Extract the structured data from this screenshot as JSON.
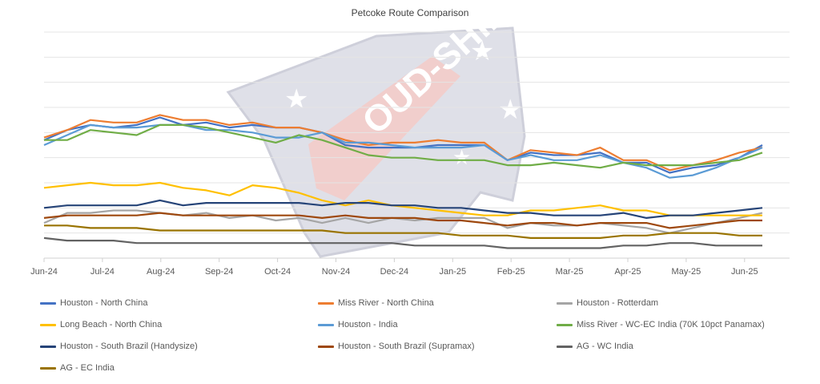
{
  "chart_data": {
    "type": "line",
    "title": "Petcoke Route Comparison",
    "xlabel": "",
    "ylabel": "",
    "ylim": [
      0,
      90
    ],
    "grid": true,
    "legend_position": "bottom",
    "watermark": "OUD-SHIP",
    "x_tick_labels": [
      "Jun-24",
      "Jul-24",
      "Aug-24",
      "Sep-24",
      "Oct-24",
      "Nov-24",
      "Dec-24",
      "Jan-25",
      "Feb-25",
      "Mar-25",
      "Apr-25",
      "May-25",
      "Jun-25"
    ],
    "series": [
      {
        "name": "Houston - North China",
        "color": "#4472C4",
        "values": [
          47,
          51,
          53,
          52,
          53,
          56,
          53,
          54,
          52,
          53,
          52,
          52,
          50,
          45,
          44,
          44,
          44,
          45,
          45,
          45,
          39,
          42,
          41,
          41,
          42,
          38,
          38,
          34,
          36,
          37,
          40,
          45
        ]
      },
      {
        "name": "Miss River - North China",
        "color": "#ED7D31",
        "values": [
          48,
          51,
          55,
          54,
          54,
          57,
          55,
          55,
          53,
          54,
          52,
          52,
          50,
          47,
          45,
          46,
          46,
          47,
          46,
          46,
          39,
          43,
          42,
          41,
          44,
          39,
          39,
          35,
          37,
          39,
          42,
          44
        ]
      },
      {
        "name": "Houston - Rotterdam",
        "color": "#A5A5A5",
        "values": [
          14,
          18,
          18,
          19,
          19,
          18,
          17,
          18,
          16,
          17,
          15,
          16,
          14,
          16,
          14,
          16,
          15,
          16,
          16,
          16,
          12,
          14,
          13,
          13,
          14,
          13,
          12,
          10,
          12,
          14,
          16,
          18
        ]
      },
      {
        "name": "Long Beach - North China",
        "color": "#FFC000",
        "values": [
          28,
          29,
          30,
          29,
          29,
          30,
          28,
          27,
          25,
          29,
          28,
          26,
          23,
          21,
          23,
          21,
          20,
          19,
          18,
          17,
          17,
          19,
          19,
          20,
          21,
          19,
          19,
          17,
          17,
          17,
          17,
          17
        ]
      },
      {
        "name": "Houston - India",
        "color": "#5B9BD5",
        "values": [
          45,
          49,
          53,
          52,
          52,
          53,
          53,
          51,
          51,
          50,
          48,
          48,
          50,
          46,
          46,
          45,
          44,
          44,
          44,
          45,
          39,
          41,
          39,
          39,
          41,
          38,
          36,
          32,
          33,
          36,
          40,
          44
        ]
      },
      {
        "name": "Miss River - WC-EC India (70K 10pct Panamax)",
        "color": "#70AD47",
        "values": [
          47,
          47,
          51,
          50,
          49,
          53,
          53,
          52,
          50,
          48,
          46,
          49,
          47,
          44,
          41,
          40,
          40,
          39,
          39,
          39,
          37,
          37,
          38,
          37,
          36,
          38,
          37,
          37,
          37,
          38,
          39,
          42
        ]
      },
      {
        "name": "Houston - South Brazil (Handysize)",
        "color": "#264478",
        "values": [
          20,
          21,
          21,
          21,
          21,
          23,
          21,
          22,
          22,
          22,
          22,
          22,
          21,
          22,
          22,
          21,
          21,
          20,
          20,
          19,
          18,
          18,
          17,
          17,
          17,
          18,
          16,
          17,
          17,
          18,
          19,
          20
        ]
      },
      {
        "name": "Houston - South Brazil (Supramax)",
        "color": "#9E480E",
        "values": [
          16,
          17,
          17,
          17,
          17,
          18,
          17,
          17,
          17,
          17,
          17,
          17,
          16,
          17,
          16,
          16,
          16,
          15,
          15,
          14,
          13,
          14,
          14,
          13,
          14,
          14,
          14,
          12,
          13,
          14,
          15,
          15
        ]
      },
      {
        "name": "AG - WC India",
        "color": "#636363",
        "values": [
          8,
          7,
          7,
          7,
          6,
          6,
          6,
          6,
          6,
          6,
          6,
          6,
          6,
          6,
          6,
          6,
          5,
          5,
          5,
          5,
          4,
          4,
          4,
          4,
          4,
          5,
          5,
          6,
          6,
          5,
          5,
          5
        ]
      },
      {
        "name": "AG - EC India",
        "color": "#997300",
        "values": [
          13,
          13,
          12,
          12,
          12,
          11,
          11,
          11,
          11,
          11,
          11,
          11,
          11,
          10,
          10,
          10,
          10,
          10,
          9,
          9,
          9,
          8,
          8,
          8,
          8,
          9,
          9,
          10,
          10,
          10,
          9,
          9
        ]
      }
    ]
  }
}
